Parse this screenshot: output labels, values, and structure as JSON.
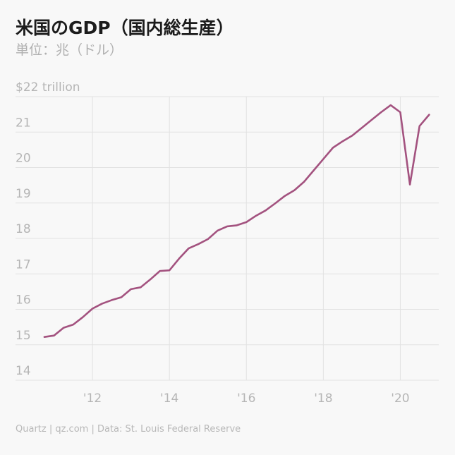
{
  "header": {
    "title": "米国のGDP（国内総生産）",
    "subtitle": "単位：兆（ドル）"
  },
  "footer": {
    "source": "Quartz | qz.com | Data: St. Louis Federal Reserve"
  },
  "chart_data": {
    "type": "line",
    "title": "米国のGDP（国内総生産）",
    "subtitle": "単位：兆（ドル）",
    "xlabel": "",
    "ylabel": "",
    "xlim": [
      2010.0,
      2021.0
    ],
    "ylim": [
      14,
      22
    ],
    "grid": true,
    "legend": "none",
    "line_color": "#a3527f",
    "y_ticks": [
      {
        "value": 22,
        "label": "$22 trillion"
      },
      {
        "value": 21,
        "label": "21"
      },
      {
        "value": 20,
        "label": "20"
      },
      {
        "value": 19,
        "label": "19"
      },
      {
        "value": 18,
        "label": "18"
      },
      {
        "value": 17,
        "label": "17"
      },
      {
        "value": 16,
        "label": "16"
      },
      {
        "value": 15,
        "label": "15"
      },
      {
        "value": 14,
        "label": "14"
      }
    ],
    "x_ticks": [
      {
        "value": 2012,
        "label": "'12"
      },
      {
        "value": 2014,
        "label": "'14"
      },
      {
        "value": 2016,
        "label": "'16"
      },
      {
        "value": 2018,
        "label": "'18"
      },
      {
        "value": 2020,
        "label": "'20"
      }
    ],
    "series": [
      {
        "x": [
          2010.75,
          2011.0,
          2011.25,
          2011.5,
          2011.75,
          2012.0,
          2012.25,
          2012.5,
          2012.75,
          2013.0,
          2013.25,
          2013.5,
          2013.75,
          2014.0,
          2014.25,
          2014.5,
          2014.75,
          2015.0,
          2015.25,
          2015.5,
          2015.75,
          2016.0,
          2016.25,
          2016.5,
          2016.75,
          2017.0,
          2017.25,
          2017.5,
          2017.75,
          2018.0,
          2018.25,
          2018.5,
          2018.75,
          2019.0,
          2019.25,
          2019.5,
          2019.75,
          2020.0,
          2020.25,
          2020.5,
          2020.75
        ],
        "values": [
          15.22,
          15.26,
          15.48,
          15.57,
          15.78,
          16.02,
          16.16,
          16.26,
          16.34,
          16.57,
          16.62,
          16.84,
          17.08,
          17.1,
          17.43,
          17.72,
          17.84,
          17.98,
          18.22,
          18.34,
          18.37,
          18.46,
          18.64,
          18.79,
          18.99,
          19.2,
          19.36,
          19.6,
          19.92,
          20.24,
          20.56,
          20.74,
          20.9,
          21.12,
          21.34,
          21.56,
          21.76,
          21.56,
          19.52,
          21.17,
          21.49
        ]
      }
    ]
  }
}
